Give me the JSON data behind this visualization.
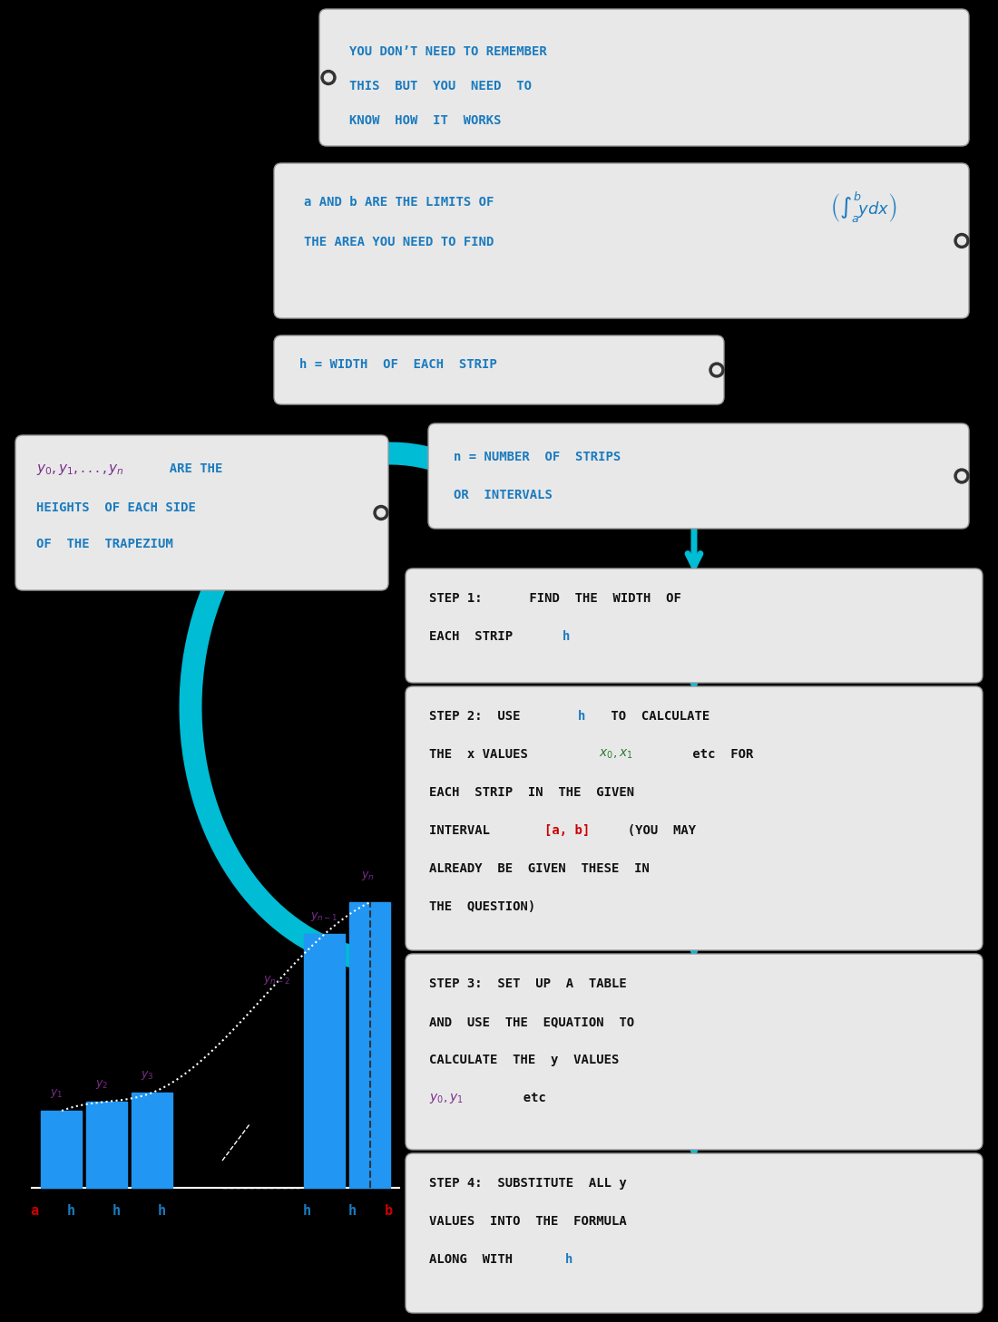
{
  "bg_color": "#000000",
  "box_bg": "#e8e8e8",
  "box_border": "#cccccc",
  "blue_text": "#1a7bbf",
  "cyan_arrow": "#00bcd4",
  "purple_text": "#7b2d8b",
  "red_text": "#cc0000",
  "green_text": "#2e7d32",
  "dark_text": "#111111",
  "bar_color": "#2196F3",
  "box1_text": "YOU DON’T NEED TO REMEMBER\nTHIS  BUT  YOU  NEED  TO\nKNOW  HOW  IT  WORKS",
  "box2_line1": "a AND b ARE THE LIMITS OF",
  "box2_line2": "THE AREA YOU NEED TO FIND",
  "box3_text": "h = WIDTH  OF  EACH  STRIP",
  "box4_text": "n = NUMBER  OF  STRIPS\nOR  INTERVALS",
  "box_y0yn_line1": "y₀, y₁, ..., yₙ  ARE THE",
  "box_y0yn_line2": "HEIGHTS  OF EACH SIDE",
  "box_y0yn_line3": "OF  THE  TRAPEZIUM",
  "step1_text": "STEP 1:  FIND  THE  WIDTH  OF\nEACH  STRIP  h",
  "step2_text": "STEP 2:  USE h TO  CALCULATE\nTHE  x VALUES  x₀, x₁ etc  FOR\nEACH  STRIP  IN  THE  GIVEN\nINTERVAL  [a, b]  (YOU  MAY\nALREADY  BE  GIVEN  THESE  IN\nTHE  QUESTION)",
  "step3_text": "STEP 3:  SET  UP  A  TABLE\nAND  USE  THE  EQUATION  TO\nCALCULATE  THE  y  VALUES\ny₀, y₁  etc",
  "step4_text": "STEP 4:  SUBSTITUTE  ALL y\nVALUES  INTO  THE  FORMULA\nALONG  WITH  h"
}
